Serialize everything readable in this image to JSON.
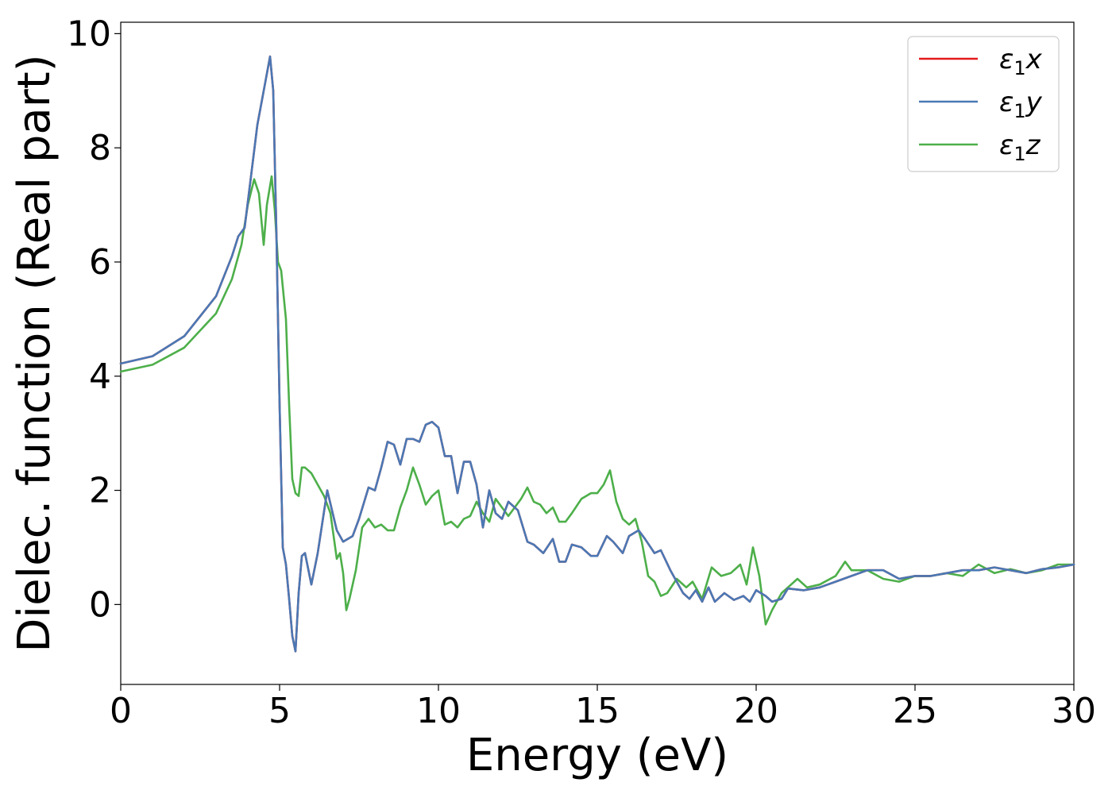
{
  "chart_data": {
    "type": "line",
    "title": "",
    "xlabel": "Energy (eV)",
    "ylabel": "Dielec. function (Real part)",
    "xlim": [
      0,
      30
    ],
    "ylim": [
      -1.4,
      10.2
    ],
    "xticks": [
      0,
      5,
      10,
      15,
      20,
      25,
      30
    ],
    "yticks": [
      0,
      2,
      4,
      6,
      8,
      10
    ],
    "grid": false,
    "legend_position": "top-right",
    "series": [
      {
        "name": "ε1x",
        "legend": {
          "base": "ε",
          "sub": "1",
          "suffix": "x"
        },
        "color": "#e41a1c",
        "x": [
          0,
          1,
          2,
          3,
          3.5,
          3.7,
          3.9,
          4.1,
          4.3,
          4.5,
          4.7,
          4.8,
          4.9,
          5.0,
          5.1,
          5.2,
          5.3,
          5.4,
          5.5,
          5.6,
          5.7,
          5.8,
          6.0,
          6.2,
          6.5,
          6.8,
          7.0,
          7.3,
          7.5,
          7.8,
          8.0,
          8.2,
          8.4,
          8.6,
          8.8,
          9.0,
          9.2,
          9.4,
          9.6,
          9.8,
          10.0,
          10.2,
          10.4,
          10.6,
          10.8,
          11.0,
          11.2,
          11.4,
          11.6,
          11.8,
          12.0,
          12.2,
          12.5,
          12.8,
          13.0,
          13.3,
          13.6,
          13.8,
          14.0,
          14.2,
          14.5,
          14.8,
          15.0,
          15.3,
          15.5,
          15.8,
          16.0,
          16.3,
          16.5,
          16.8,
          17.0,
          17.3,
          17.5,
          17.7,
          17.9,
          18.1,
          18.3,
          18.5,
          18.7,
          19.0,
          19.3,
          19.6,
          19.8,
          20.0,
          20.3,
          20.5,
          20.8,
          21.0,
          21.5,
          22.0,
          22.5,
          23.0,
          23.5,
          24.0,
          24.5,
          25.0,
          25.5,
          26.0,
          26.5,
          27.0,
          27.5,
          28.0,
          28.5,
          29.0,
          29.5,
          30.0
        ],
        "y": [
          4.22,
          4.35,
          4.7,
          5.4,
          6.1,
          6.45,
          6.6,
          7.5,
          8.4,
          9.0,
          9.6,
          9.0,
          6.5,
          3.5,
          1.0,
          0.7,
          0.1,
          -0.55,
          -0.82,
          0.2,
          0.85,
          0.9,
          0.35,
          0.9,
          2.0,
          1.3,
          1.1,
          1.2,
          1.5,
          2.05,
          2.0,
          2.4,
          2.85,
          2.8,
          2.45,
          2.9,
          2.9,
          2.85,
          3.15,
          3.2,
          3.1,
          2.6,
          2.6,
          1.95,
          2.5,
          2.5,
          2.1,
          1.35,
          2.0,
          1.6,
          1.5,
          1.8,
          1.65,
          1.1,
          1.05,
          0.9,
          1.15,
          0.75,
          0.75,
          1.05,
          1.0,
          0.85,
          0.85,
          1.2,
          1.1,
          0.9,
          1.2,
          1.3,
          1.15,
          0.9,
          0.95,
          0.6,
          0.4,
          0.2,
          0.1,
          0.25,
          0.05,
          0.3,
          0.05,
          0.2,
          0.08,
          0.15,
          0.05,
          0.25,
          0.15,
          0.05,
          0.1,
          0.28,
          0.25,
          0.3,
          0.4,
          0.5,
          0.6,
          0.6,
          0.45,
          0.5,
          0.5,
          0.55,
          0.6,
          0.6,
          0.65,
          0.6,
          0.55,
          0.62,
          0.65,
          0.7
        ]
      },
      {
        "name": "ε1y",
        "legend": {
          "base": "ε",
          "sub": "1",
          "suffix": "y"
        },
        "color": "#4a78b4",
        "x": [
          0,
          1,
          2,
          3,
          3.5,
          3.7,
          3.9,
          4.1,
          4.3,
          4.5,
          4.7,
          4.8,
          4.9,
          5.0,
          5.1,
          5.2,
          5.3,
          5.4,
          5.5,
          5.6,
          5.7,
          5.8,
          6.0,
          6.2,
          6.5,
          6.8,
          7.0,
          7.3,
          7.5,
          7.8,
          8.0,
          8.2,
          8.4,
          8.6,
          8.8,
          9.0,
          9.2,
          9.4,
          9.6,
          9.8,
          10.0,
          10.2,
          10.4,
          10.6,
          10.8,
          11.0,
          11.2,
          11.4,
          11.6,
          11.8,
          12.0,
          12.2,
          12.5,
          12.8,
          13.0,
          13.3,
          13.6,
          13.8,
          14.0,
          14.2,
          14.5,
          14.8,
          15.0,
          15.3,
          15.5,
          15.8,
          16.0,
          16.3,
          16.5,
          16.8,
          17.0,
          17.3,
          17.5,
          17.7,
          17.9,
          18.1,
          18.3,
          18.5,
          18.7,
          19.0,
          19.3,
          19.6,
          19.8,
          20.0,
          20.3,
          20.5,
          20.8,
          21.0,
          21.5,
          22.0,
          22.5,
          23.0,
          23.5,
          24.0,
          24.5,
          25.0,
          25.5,
          26.0,
          26.5,
          27.0,
          27.5,
          28.0,
          28.5,
          29.0,
          29.5,
          30.0
        ],
        "y": [
          4.22,
          4.35,
          4.7,
          5.4,
          6.1,
          6.45,
          6.6,
          7.5,
          8.4,
          9.0,
          9.6,
          9.0,
          6.5,
          3.5,
          1.0,
          0.7,
          0.1,
          -0.55,
          -0.82,
          0.2,
          0.85,
          0.9,
          0.35,
          0.9,
          2.0,
          1.3,
          1.1,
          1.2,
          1.5,
          2.05,
          2.0,
          2.4,
          2.85,
          2.8,
          2.45,
          2.9,
          2.9,
          2.85,
          3.15,
          3.2,
          3.1,
          2.6,
          2.6,
          1.95,
          2.5,
          2.5,
          2.1,
          1.35,
          2.0,
          1.6,
          1.5,
          1.8,
          1.65,
          1.1,
          1.05,
          0.9,
          1.15,
          0.75,
          0.75,
          1.05,
          1.0,
          0.85,
          0.85,
          1.2,
          1.1,
          0.9,
          1.2,
          1.3,
          1.15,
          0.9,
          0.95,
          0.6,
          0.4,
          0.2,
          0.1,
          0.25,
          0.05,
          0.3,
          0.05,
          0.2,
          0.08,
          0.15,
          0.05,
          0.25,
          0.15,
          0.05,
          0.1,
          0.28,
          0.25,
          0.3,
          0.4,
          0.5,
          0.6,
          0.6,
          0.45,
          0.5,
          0.5,
          0.55,
          0.6,
          0.6,
          0.65,
          0.6,
          0.55,
          0.62,
          0.65,
          0.7
        ]
      },
      {
        "name": "ε1z",
        "legend": {
          "base": "ε",
          "sub": "1",
          "suffix": "z"
        },
        "color": "#4daf4a",
        "x": [
          0,
          1,
          2,
          3,
          3.5,
          3.8,
          4.0,
          4.2,
          4.35,
          4.5,
          4.6,
          4.75,
          4.85,
          4.95,
          5.05,
          5.2,
          5.3,
          5.4,
          5.5,
          5.6,
          5.7,
          5.8,
          6.0,
          6.2,
          6.4,
          6.6,
          6.8,
          6.9,
          7.0,
          7.1,
          7.2,
          7.4,
          7.6,
          7.8,
          8.0,
          8.2,
          8.4,
          8.6,
          8.8,
          9.0,
          9.2,
          9.4,
          9.6,
          9.8,
          10.0,
          10.2,
          10.4,
          10.6,
          10.8,
          11.0,
          11.2,
          11.4,
          11.6,
          11.8,
          12.0,
          12.2,
          12.4,
          12.6,
          12.8,
          13.0,
          13.2,
          13.4,
          13.6,
          13.8,
          14.0,
          14.2,
          14.5,
          14.8,
          15.0,
          15.2,
          15.4,
          15.6,
          15.8,
          16.0,
          16.2,
          16.4,
          16.6,
          16.8,
          17.0,
          17.2,
          17.5,
          17.8,
          18.0,
          18.3,
          18.6,
          18.9,
          19.2,
          19.5,
          19.7,
          19.9,
          20.1,
          20.3,
          20.5,
          20.8,
          21.0,
          21.3,
          21.6,
          22.0,
          22.5,
          22.8,
          23.0,
          23.5,
          24.0,
          24.5,
          25.0,
          25.5,
          26.0,
          26.5,
          27.0,
          27.5,
          28.0,
          28.5,
          29.0,
          29.5,
          30.0
        ],
        "y": [
          4.08,
          4.2,
          4.5,
          5.1,
          5.7,
          6.3,
          7.0,
          7.45,
          7.2,
          6.3,
          7.0,
          7.5,
          6.9,
          6.0,
          5.85,
          5.0,
          3.5,
          2.2,
          1.95,
          1.9,
          2.4,
          2.4,
          2.3,
          2.1,
          1.9,
          1.6,
          0.8,
          0.9,
          0.55,
          -0.1,
          0.1,
          0.6,
          1.35,
          1.5,
          1.35,
          1.4,
          1.3,
          1.3,
          1.7,
          2.0,
          2.4,
          2.1,
          1.75,
          1.9,
          2.0,
          1.4,
          1.45,
          1.35,
          1.5,
          1.55,
          1.8,
          1.6,
          1.45,
          1.85,
          1.7,
          1.55,
          1.7,
          1.85,
          2.05,
          1.8,
          1.75,
          1.6,
          1.7,
          1.45,
          1.45,
          1.6,
          1.85,
          1.95,
          1.95,
          2.1,
          2.35,
          1.8,
          1.5,
          1.4,
          1.5,
          1.1,
          0.5,
          0.4,
          0.15,
          0.2,
          0.45,
          0.3,
          0.4,
          0.1,
          0.65,
          0.5,
          0.55,
          0.7,
          0.35,
          1.0,
          0.5,
          -0.35,
          -0.1,
          0.2,
          0.3,
          0.45,
          0.3,
          0.35,
          0.5,
          0.75,
          0.6,
          0.6,
          0.45,
          0.4,
          0.5,
          0.5,
          0.55,
          0.5,
          0.7,
          0.55,
          0.62,
          0.55,
          0.6,
          0.7,
          0.7
        ]
      }
    ]
  }
}
